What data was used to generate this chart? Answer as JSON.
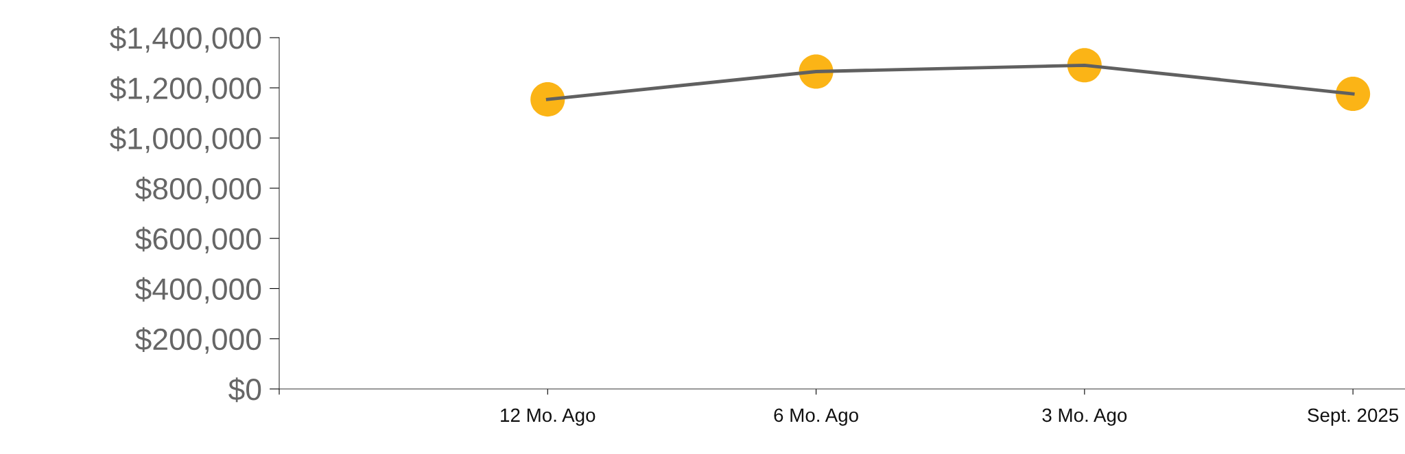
{
  "chart_data": {
    "type": "line",
    "categories": [
      null,
      "12 Mo. Ago",
      "6 Mo. Ago",
      "3 Mo. Ago",
      "Sept. 2025"
    ],
    "series": [
      {
        "color": "#606060",
        "marker": "none",
        "values": [
          null,
          1154000,
          1265000,
          1290000,
          1176000
        ]
      },
      {
        "type": "scatter",
        "color": "#fbb416",
        "marker": "circle",
        "values": [
          null,
          1154000,
          1265000,
          1290000,
          1176000
        ]
      }
    ],
    "ylim": [
      0,
      1400000
    ],
    "yticks": [
      {
        "value": 0,
        "label": "$0"
      },
      {
        "value": 200000,
        "label": "$200,000"
      },
      {
        "value": 400000,
        "label": "$400,000"
      },
      {
        "value": 600000,
        "label": "$600,000"
      },
      {
        "value": 800000,
        "label": "$800,000"
      },
      {
        "value": 1000000,
        "label": "$1,000,000"
      },
      {
        "value": 1200000,
        "label": "$1,200,000"
      },
      {
        "value": 1400000,
        "label": "$1,400,000"
      }
    ],
    "grid": false,
    "legend": false
  }
}
